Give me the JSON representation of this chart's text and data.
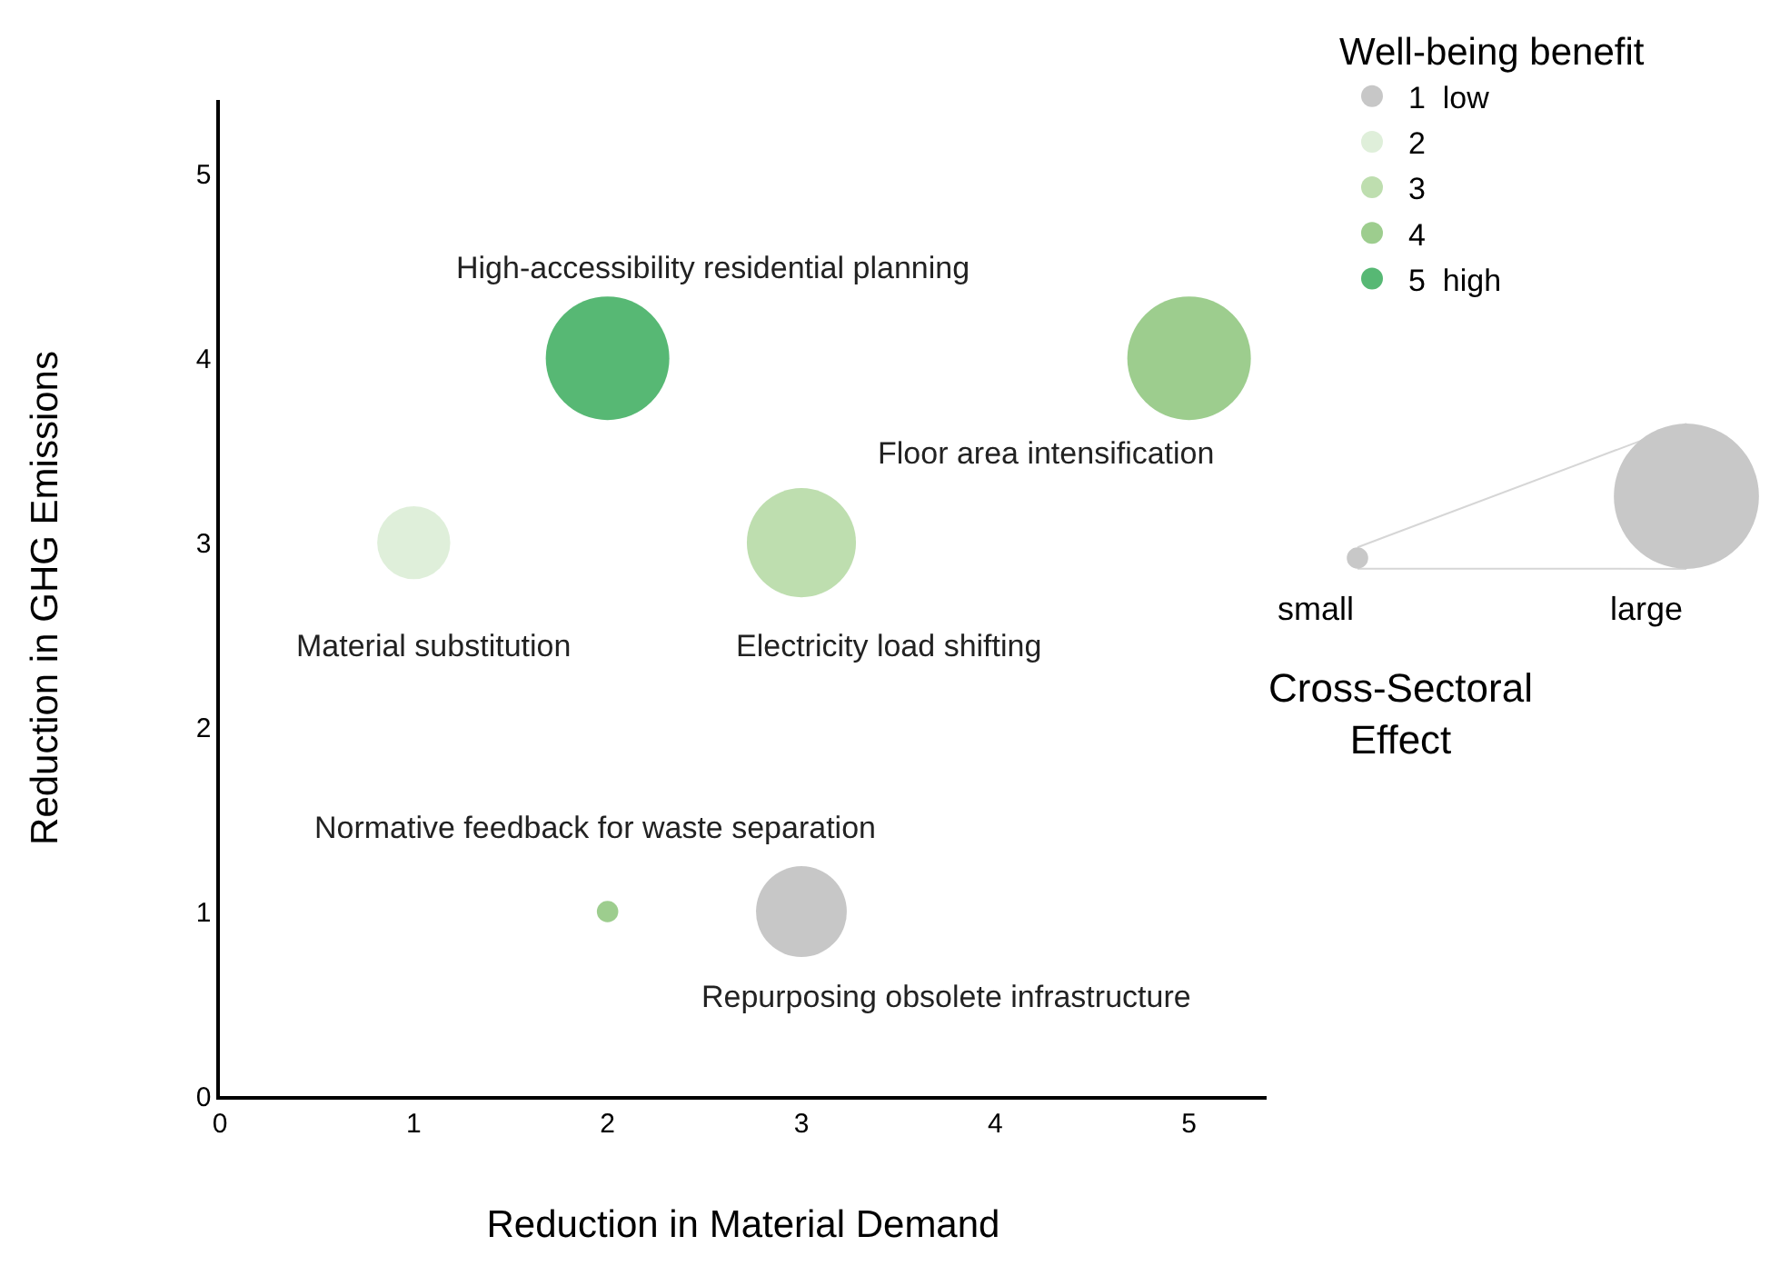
{
  "chart_data": {
    "type": "bubble",
    "xlabel": "Reduction in Material Demand",
    "ylabel": "Reduction in GHG Emissions",
    "legend_title": "Well-being benefit",
    "xlim": [
      0,
      5.4
    ],
    "xticks": [
      0,
      1,
      2,
      3,
      4,
      5
    ],
    "ylim": [
      0,
      5.4
    ],
    "yticks": [
      0,
      1,
      2,
      3,
      4,
      5
    ],
    "legend": "top right",
    "series": [
      {
        "name": "1  low",
        "color": "#bdbdbd",
        "x": [
          3
        ],
        "values": [
          1
        ],
        "sizes": [
          0.54
        ]
      },
      {
        "name": "2",
        "color": "#d9ecd3",
        "x": [
          1
        ],
        "values": [
          3
        ],
        "sizes": [
          0.35
        ]
      },
      {
        "name": "3",
        "color": "#b3d8a1",
        "x": [
          3
        ],
        "values": [
          3
        ],
        "sizes": [
          0.78
        ]
      },
      {
        "name": "4",
        "color": "#8cc47a",
        "x": [
          5,
          2
        ],
        "values": [
          4,
          1
        ],
        "sizes": [
          1,
          0.03
        ]
      },
      {
        "name": "5  high",
        "color": "#3aac5c",
        "x": [
          2
        ],
        "values": [
          4
        ],
        "sizes": [
          1
        ]
      }
    ],
    "size_legend": [
      {
        "value": 0.03,
        "label": "small"
      },
      {
        "value": 1.38,
        "label": "large"
      }
    ],
    "annotations": [
      {
        "text": "High-accessibility residential planning",
        "x": 2,
        "y": 4
      },
      {
        "text": "Floor area intensification",
        "x": 5,
        "y": 4
      },
      {
        "text": "Material substitution",
        "x": 1,
        "y": 3
      },
      {
        "text": "Electricity load shifting",
        "x": 3,
        "y": 3
      },
      {
        "text": "Normative feedback for waste separation",
        "x": 2,
        "y": 1
      },
      {
        "text": "Repurposing obsolete infrastructure",
        "x": 3,
        "y": 1
      },
      "Cross-Sectoral Effect"
    ]
  }
}
